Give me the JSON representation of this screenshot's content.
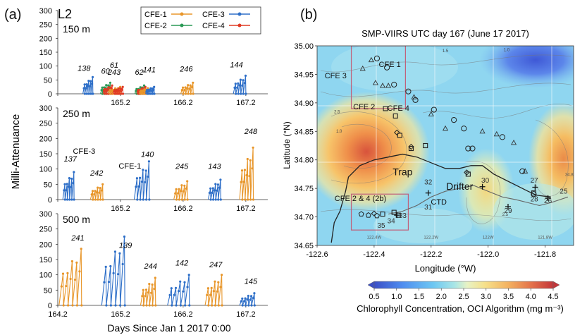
{
  "figure": {
    "panel_a_letter": "(a)",
    "panel_b_letter": "(b)"
  },
  "chart_data": [
    {
      "type": "line",
      "panel": "a",
      "title": "L2",
      "ylabel": "Milli-Attenuance",
      "xlabel": "Days Since Jan 1 2017 0:00",
      "x_ticks": [
        "164.2",
        "165.2",
        "166.2",
        "167.2"
      ],
      "x_tick_values": [
        164.2,
        165.2,
        166.2,
        167.2
      ],
      "xlim": [
        164.2,
        167.55
      ],
      "legend": {
        "placement": "top-right",
        "entries": [
          {
            "name": "CFE-1",
            "color": "#e8962a"
          },
          {
            "name": "CFE-3",
            "color": "#2e6fc8"
          },
          {
            "name": "CFE-2",
            "color": "#2a9a55"
          },
          {
            "name": "CFE-4",
            "color": "#e03a24"
          }
        ]
      },
      "subplots": [
        {
          "depth": "150 m",
          "ylim": [
            0,
            300
          ],
          "y_ticks": [
            "0",
            "50",
            "100",
            "150",
            "200",
            "250",
            "300"
          ],
          "annotations": [
            {
              "text": "138",
              "x": 164.62,
              "y": 82
            },
            {
              "text": "60",
              "x": 164.96,
              "y": 72
            },
            {
              "text": "61",
              "x": 165.1,
              "y": 94
            },
            {
              "text": "243",
              "x": 165.1,
              "y": 69
            },
            {
              "text": "62",
              "x": 165.5,
              "y": 69
            },
            {
              "text": "141",
              "x": 165.66,
              "y": 78
            },
            {
              "text": "246",
              "x": 166.25,
              "y": 80
            },
            {
              "text": "144",
              "x": 167.05,
              "y": 95
            }
          ],
          "profiles": [
            {
              "station": "CFE-3",
              "x_start": 164.6,
              "x_end": 164.76,
              "peak": 60
            },
            {
              "station": "CFE-2",
              "x_start": 164.88,
              "x_end": 165.04,
              "peak": 40
            },
            {
              "station": "CFE-4",
              "x_start": 164.92,
              "x_end": 165.07,
              "peak": 30
            },
            {
              "station": "CFE-1",
              "x_start": 165.0,
              "x_end": 165.2,
              "peak": 25
            },
            {
              "station": "CFE-4",
              "x_start": 165.08,
              "x_end": 165.24,
              "peak": 25
            },
            {
              "station": "CFE-2",
              "x_start": 165.43,
              "x_end": 165.58,
              "peak": 30
            },
            {
              "station": "CFE-4",
              "x_start": 165.46,
              "x_end": 165.6,
              "peak": 25
            },
            {
              "station": "CFE-1",
              "x_start": 165.5,
              "x_end": 165.64,
              "peak": 20
            },
            {
              "station": "CFE-3",
              "x_start": 165.6,
              "x_end": 165.74,
              "peak": 25
            },
            {
              "station": "CFE-1",
              "x_start": 166.16,
              "x_end": 166.36,
              "peak": 40
            },
            {
              "station": "CFE-3",
              "x_start": 167.0,
              "x_end": 167.2,
              "peak": 65
            }
          ]
        },
        {
          "depth": "250 m",
          "ylim": [
            0,
            300
          ],
          "y_ticks": [
            "0",
            "50",
            "100",
            "150",
            "200",
            "250",
            "300"
          ],
          "annotations": [
            {
              "text": "137",
              "x": 164.4,
              "y": 125
            },
            {
              "text": "CFE-3",
              "x": 164.62,
              "y": 150
            },
            {
              "text": "242",
              "x": 164.82,
              "y": 78
            },
            {
              "text": "CFE-1",
              "x": 165.35,
              "y": 102
            },
            {
              "text": "140",
              "x": 165.63,
              "y": 140
            },
            {
              "text": "245",
              "x": 166.18,
              "y": 100
            },
            {
              "text": "143",
              "x": 166.7,
              "y": 100
            },
            {
              "text": "248",
              "x": 167.28,
              "y": 215
            }
          ],
          "profiles": [
            {
              "station": "CFE-3",
              "x_start": 164.28,
              "x_end": 164.46,
              "peak": 90
            },
            {
              "station": "CFE-1",
              "x_start": 164.72,
              "x_end": 164.92,
              "peak": 50
            },
            {
              "station": "CFE-3",
              "x_start": 165.42,
              "x_end": 165.66,
              "peak": 125
            },
            {
              "station": "CFE-1",
              "x_start": 166.05,
              "x_end": 166.27,
              "peak": 60
            },
            {
              "station": "CFE-3",
              "x_start": 166.6,
              "x_end": 166.8,
              "peak": 65
            },
            {
              "station": "CFE-1",
              "x_start": 167.1,
              "x_end": 167.32,
              "peak": 170
            }
          ]
        },
        {
          "depth": "500 m",
          "ylim": [
            0,
            300
          ],
          "y_ticks": [
            "0",
            "50",
            "100",
            "150",
            "200",
            "250",
            "300"
          ],
          "annotations": [
            {
              "text": "241",
              "x": 164.52,
              "y": 212
            },
            {
              "text": "139",
              "x": 165.28,
              "y": 188
            },
            {
              "text": "244",
              "x": 165.68,
              "y": 120
            },
            {
              "text": "142",
              "x": 166.18,
              "y": 130
            },
            {
              "text": "247",
              "x": 166.72,
              "y": 125
            },
            {
              "text": "145",
              "x": 167.28,
              "y": 70
            }
          ],
          "profiles": [
            {
              "station": "CFE-1",
              "x_start": 164.22,
              "x_end": 164.58,
              "peak": 185
            },
            {
              "station": "CFE-3",
              "x_start": 164.9,
              "x_end": 165.27,
              "peak": 225
            },
            {
              "station": "CFE-1",
              "x_start": 165.52,
              "x_end": 165.76,
              "peak": 90
            },
            {
              "station": "CFE-3",
              "x_start": 165.95,
              "x_end": 166.3,
              "peak": 100
            },
            {
              "station": "CFE-1",
              "x_start": 166.55,
              "x_end": 166.82,
              "peak": 100
            },
            {
              "station": "CFE-3",
              "x_start": 167.1,
              "x_end": 167.34,
              "peak": 40
            }
          ]
        }
      ]
    },
    {
      "type": "heatmap",
      "panel": "b",
      "title": "SMP-VIIRS UTC day 167 (June 17 2017)",
      "xlabel": "Longitude (°W)",
      "ylabel": "Latitude (°N)",
      "xlim": [
        -122.6,
        -121.7
      ],
      "ylim": [
        34.65,
        35.0
      ],
      "x_ticks": [
        "-122.6",
        "-122.4",
        "-122.2",
        "-122.0",
        "-121.8"
      ],
      "x_tick_values": [
        -122.6,
        -122.4,
        -122.2,
        -122.0,
        -121.8
      ],
      "y_ticks": [
        "34.65",
        "34.70",
        "34.75",
        "34.80",
        "34.85",
        "34.90",
        "34.95",
        "35.00"
      ],
      "y_tick_values": [
        34.65,
        34.7,
        34.75,
        34.8,
        34.85,
        34.9,
        34.95,
        35.0
      ],
      "colorbar": {
        "label": "Chlorophyll Concentration, OCI Algorithm (mg m⁻³)",
        "ticks": [
          "0.5",
          "1.0",
          "1.5",
          "2.0",
          "2.5",
          "3.0",
          "3.5",
          "4.0",
          "4.5"
        ],
        "range": [
          0.5,
          4.5
        ]
      },
      "grid_labels": [
        {
          "text": "122.4W",
          "lon": -122.4,
          "lat": 34.662
        },
        {
          "text": "122.2W",
          "lon": -122.2,
          "lat": 34.662
        },
        {
          "text": "122W",
          "lon": -122.0,
          "lat": 34.662
        },
        {
          "text": "121.8W",
          "lon": -121.8,
          "lat": 34.662
        },
        {
          "text": "34.8N",
          "lon": -121.71,
          "lat": 34.772
        }
      ],
      "contour_labels": [
        {
          "text": "1.5",
          "lon": -122.15,
          "lat": 34.989
        },
        {
          "text": "1.0",
          "lon": -121.935,
          "lat": 34.991
        },
        {
          "text": "2.5",
          "lon": -122.53,
          "lat": 34.882
        },
        {
          "text": "1.0",
          "lon": -122.523,
          "lat": 34.848
        },
        {
          "text": "2.5",
          "lon": -121.94,
          "lat": 34.702
        }
      ],
      "text_labels": [
        {
          "text": "CFE 1",
          "lon": -122.345,
          "lat": 34.963
        },
        {
          "text": "CFE 3",
          "lon": -122.535,
          "lat": 34.943
        },
        {
          "text": "CFE 2",
          "lon": -122.435,
          "lat": 34.889
        },
        {
          "text": "CFE 4",
          "lon": -122.315,
          "lat": 34.886
        },
        {
          "text": "Trap",
          "lon": -122.3,
          "lat": 34.773
        },
        {
          "text": "Drifter",
          "lon": -122.1,
          "lat": 34.748
        },
        {
          "text": "CFE 2 & 4 (2b)",
          "lon": -122.448,
          "lat": 34.728
        },
        {
          "text": "CTD",
          "lon": -122.173,
          "lat": 34.722
        },
        {
          "text": "32",
          "lon": -122.21,
          "lat": 34.757
        },
        {
          "text": "31",
          "lon": -122.21,
          "lat": 34.713
        },
        {
          "text": "30",
          "lon": -122.01,
          "lat": 34.76
        },
        {
          "text": "29",
          "lon": -121.93,
          "lat": 34.707
        },
        {
          "text": "27",
          "lon": -121.838,
          "lat": 34.76
        },
        {
          "text": "28",
          "lon": -121.838,
          "lat": 34.727
        },
        {
          "text": "26",
          "lon": -121.79,
          "lat": 34.724
        },
        {
          "text": "25",
          "lon": -121.735,
          "lat": 34.741
        },
        {
          "text": "33",
          "lon": -122.3,
          "lat": 34.698
        },
        {
          "text": "34",
          "lon": -122.34,
          "lat": 34.689
        },
        {
          "text": "35",
          "lon": -122.375,
          "lat": 34.681
        }
      ],
      "boxes": [
        {
          "name": "CFE 3 region",
          "lon": [
            -122.48,
            -122.29
          ],
          "lat": [
            34.89,
            35.0
          ]
        },
        {
          "name": "CFE 2 & 4 (2b) region",
          "lon": [
            -122.48,
            -122.28
          ],
          "lat": [
            34.677,
            34.74
          ]
        }
      ],
      "markers": {
        "circles": [
          [
            -122.39,
            34.978
          ],
          [
            -122.355,
            34.962
          ],
          [
            -122.33,
            34.932
          ],
          [
            -122.28,
            34.92
          ],
          [
            -122.255,
            34.905
          ],
          [
            -122.19,
            34.888
          ],
          [
            -122.12,
            34.87
          ],
          [
            -122.085,
            34.855
          ],
          [
            -122.07,
            34.82
          ],
          [
            -122.055,
            34.82
          ],
          [
            -121.95,
            34.84
          ],
          [
            -121.88,
            34.78
          ],
          [
            -121.84,
            34.74
          ]
        ],
        "triangles": [
          [
            -122.44,
            34.96
          ],
          [
            -122.37,
            34.93
          ],
          [
            -122.26,
            34.91
          ],
          [
            -122.2,
            34.88
          ],
          [
            -122.15,
            34.855
          ],
          [
            -122.02,
            34.85
          ],
          [
            -121.97,
            34.845
          ],
          [
            -121.91,
            34.83
          ],
          [
            -121.87,
            34.78
          ],
          [
            -122.395,
            34.935
          ],
          [
            -122.35,
            34.93
          ],
          [
            -122.41,
            34.975
          ]
        ],
        "squares": [
          [
            -122.36,
            34.89
          ],
          [
            -122.325,
            34.877
          ],
          [
            -122.31,
            34.843
          ],
          [
            -122.27,
            34.82
          ],
          [
            -122.22,
            34.825
          ],
          [
            -122.07,
            34.775
          ],
          [
            -122.37,
            34.705
          ],
          [
            -122.33,
            34.708
          ],
          [
            -122.315,
            34.703
          ],
          [
            -121.84,
            34.742
          ]
        ],
        "diamonds": [
          [
            -122.32,
            34.848
          ],
          [
            -122.27,
            34.823
          ],
          [
            -122.075,
            34.778
          ],
          [
            -122.4,
            34.706
          ]
        ],
        "pentagons": [
          [
            -122.445,
            34.705
          ],
          [
            -122.42,
            34.703
          ],
          [
            -122.39,
            34.702
          ]
        ],
        "crosses": [
          [
            -122.21,
            34.742
          ],
          [
            -122.02,
            34.753
          ],
          [
            -121.93,
            34.718
          ],
          [
            -121.835,
            34.752
          ],
          [
            -121.79,
            34.733
          ],
          [
            -122.32,
            34.703
          ]
        ]
      },
      "trap_track": [
        [
          -122.55,
          34.655
        ],
        [
          -122.54,
          34.69
        ],
        [
          -122.52,
          34.71
        ],
        [
          -122.5,
          34.745
        ],
        [
          -122.49,
          34.77
        ],
        [
          -122.45,
          34.79
        ],
        [
          -122.4,
          34.8
        ],
        [
          -122.35,
          34.805
        ],
        [
          -122.3,
          34.81
        ],
        [
          -122.25,
          34.805
        ],
        [
          -122.2,
          34.795
        ],
        [
          -122.15,
          34.785
        ],
        [
          -122.1,
          34.785
        ],
        [
          -122.06,
          34.79
        ],
        [
          -122.02,
          34.79
        ],
        [
          -121.98,
          34.775
        ],
        [
          -121.94,
          34.765
        ],
        [
          -121.9,
          34.755
        ],
        [
          -121.86,
          34.745
        ],
        [
          -121.83,
          34.738
        ],
        [
          -121.78,
          34.735
        ]
      ],
      "drifter_track": [
        [
          -122.35,
          34.705
        ],
        [
          -122.3,
          34.71
        ],
        [
          -122.25,
          34.72
        ],
        [
          -122.2,
          34.735
        ],
        [
          -122.15,
          34.745
        ],
        [
          -122.1,
          34.75
        ],
        [
          -122.05,
          34.755
        ],
        [
          -122.0,
          34.745
        ],
        [
          -121.95,
          34.735
        ],
        [
          -121.9,
          34.73
        ],
        [
          -121.86,
          34.725
        ],
        [
          -121.82,
          34.72
        ],
        [
          -121.78,
          34.725
        ],
        [
          -121.72,
          34.735
        ]
      ]
    }
  ]
}
